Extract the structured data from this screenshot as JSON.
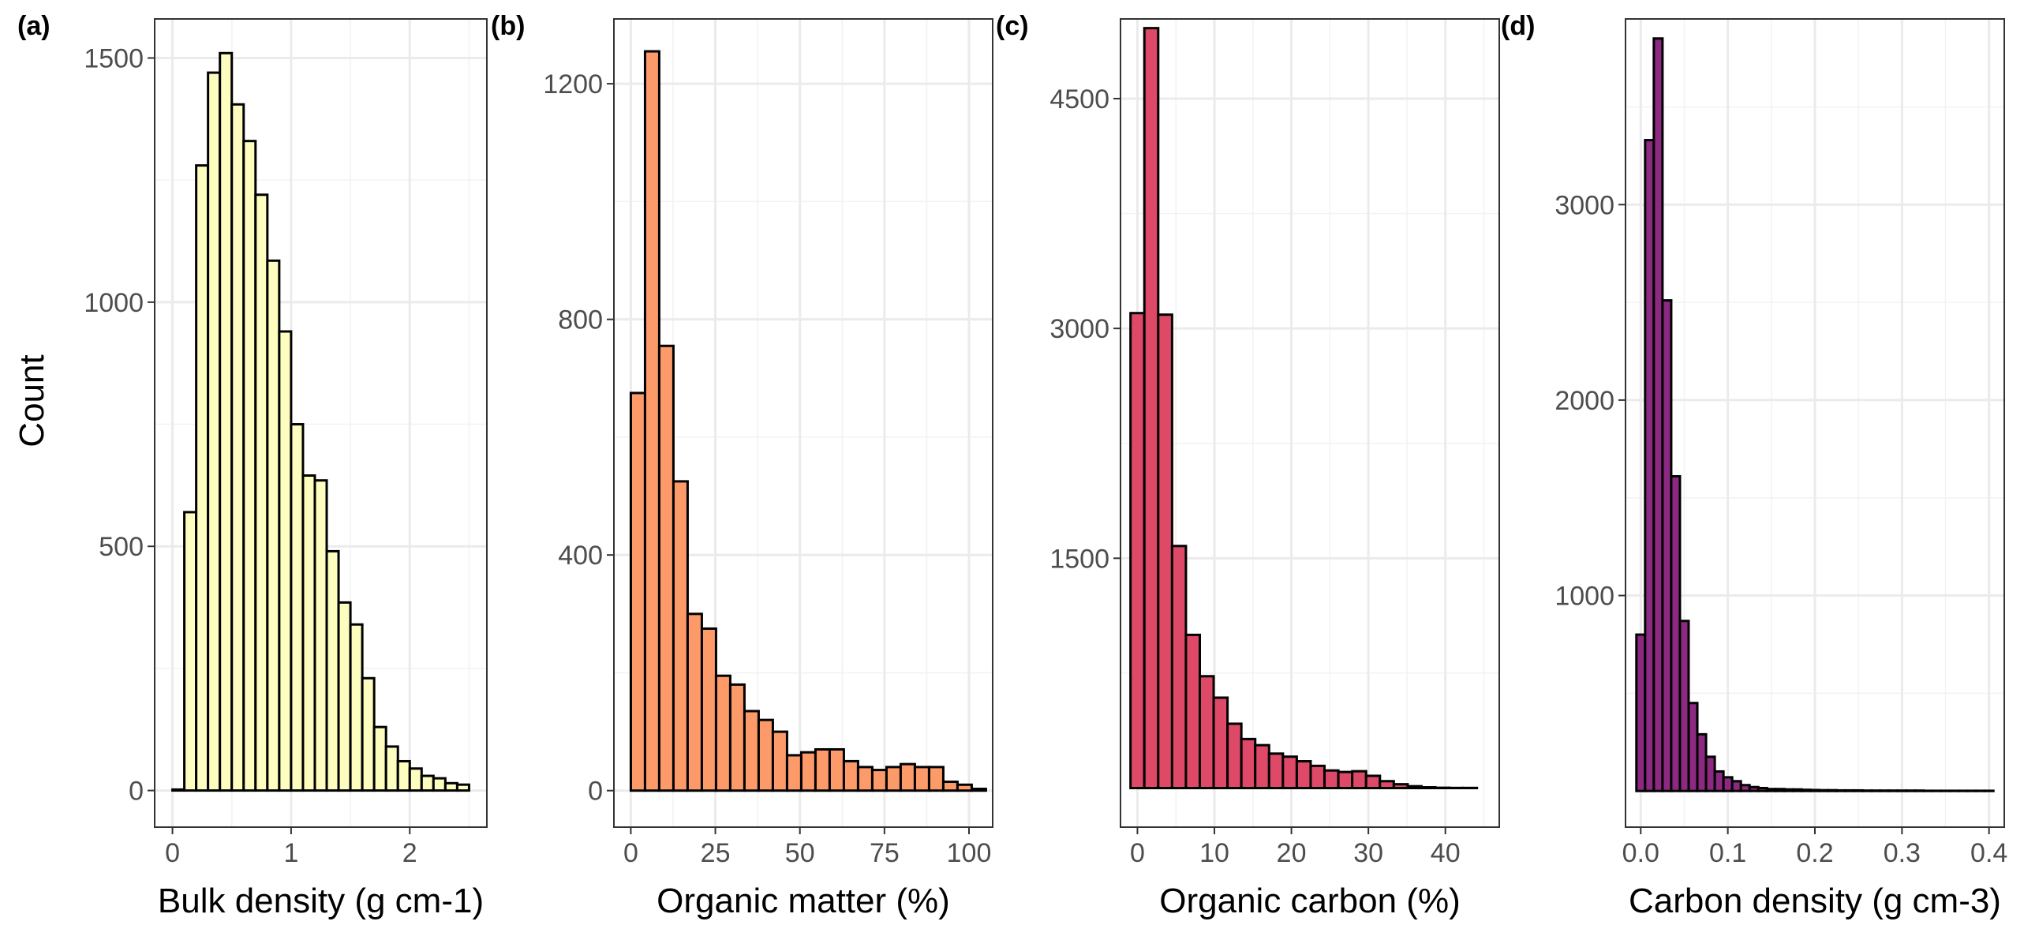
{
  "figure": {
    "ylabel": "Count"
  },
  "chart_data": [
    {
      "type": "bar",
      "panel": "(a)",
      "xlabel": "Bulk density (g cm-1)",
      "ylabel": "Count",
      "fill": "#FCFDBF",
      "xlim": [
        -0.15,
        2.65
      ],
      "ylim": [
        -75,
        1580
      ],
      "xticks": [
        0,
        1,
        2
      ],
      "xtick_labels": [
        "0",
        "1",
        "2"
      ],
      "yticks": [
        0,
        500,
        1000,
        1500
      ],
      "ytick_labels": [
        "0",
        "500",
        "1000",
        "1500"
      ],
      "bin_width": 0.1,
      "bin_start": 0.0,
      "values": [
        2,
        570,
        1280,
        1470,
        1510,
        1405,
        1330,
        1220,
        1085,
        940,
        750,
        645,
        635,
        490,
        385,
        340,
        230,
        130,
        90,
        60,
        45,
        30,
        25,
        15,
        12
      ]
    },
    {
      "type": "bar",
      "panel": "(b)",
      "xlabel": "Organic matter (%)",
      "ylabel": "",
      "fill": "#FD9A6A",
      "xlim": [
        -5,
        107
      ],
      "ylim": [
        -62,
        1310
      ],
      "xticks": [
        0,
        25,
        50,
        75,
        100
      ],
      "xtick_labels": [
        "0",
        "25",
        "50",
        "75",
        "100"
      ],
      "yticks": [
        0,
        400,
        800,
        1200
      ],
      "ytick_labels": [
        "0",
        "400",
        "800",
        "1200"
      ],
      "bin_width": 4.2,
      "bin_start": 0.0,
      "values": [
        675,
        1255,
        755,
        525,
        300,
        275,
        195,
        180,
        135,
        120,
        100,
        60,
        65,
        70,
        70,
        50,
        40,
        35,
        40,
        45,
        40,
        40,
        15,
        10,
        3
      ]
    },
    {
      "type": "bar",
      "panel": "(c)",
      "xlabel": "Organic carbon (%)",
      "ylabel": "",
      "fill": "#DE4968",
      "xlim": [
        -2.2,
        47
      ],
      "ylim": [
        -255,
        5020
      ],
      "xticks": [
        0,
        10,
        20,
        30,
        40
      ],
      "xtick_labels": [
        "0",
        "10",
        "20",
        "30",
        "40"
      ],
      "yticks": [
        1500,
        3000,
        4500
      ],
      "ytick_labels": [
        "1500",
        "3000",
        "4500"
      ],
      "bin_width": 1.8,
      "bin_start": -0.9,
      "values": [
        3100,
        4960,
        3090,
        1580,
        1000,
        730,
        590,
        420,
        320,
        280,
        225,
        205,
        175,
        145,
        115,
        105,
        110,
        80,
        45,
        25,
        12,
        5,
        2,
        1,
        1
      ]
    },
    {
      "type": "bar",
      "panel": "(d)",
      "xlabel": "Carbon density (g cm-3)",
      "ylabel": "",
      "fill": "#8C2981",
      "xlim": [
        -0.0175,
        0.4175
      ],
      "ylim": [
        -185,
        3950
      ],
      "xticks": [
        0.0,
        0.1,
        0.2,
        0.3,
        0.4
      ],
      "xtick_labels": [
        "0.0",
        "0.1",
        "0.2",
        "0.3",
        "0.4"
      ],
      "yticks": [
        1000,
        2000,
        3000
      ],
      "ytick_labels": [
        "1000",
        "2000",
        "3000"
      ],
      "bin_width": 0.01,
      "bin_start": -0.005,
      "values": [
        800,
        3330,
        3850,
        2510,
        1610,
        870,
        450,
        290,
        175,
        100,
        70,
        50,
        30,
        20,
        15,
        10,
        10,
        8,
        8,
        6,
        5,
        4,
        4,
        3,
        3,
        3,
        2,
        2,
        2,
        2,
        2,
        2,
        2,
        1,
        1,
        1,
        1,
        1,
        1,
        1,
        1
      ]
    }
  ]
}
